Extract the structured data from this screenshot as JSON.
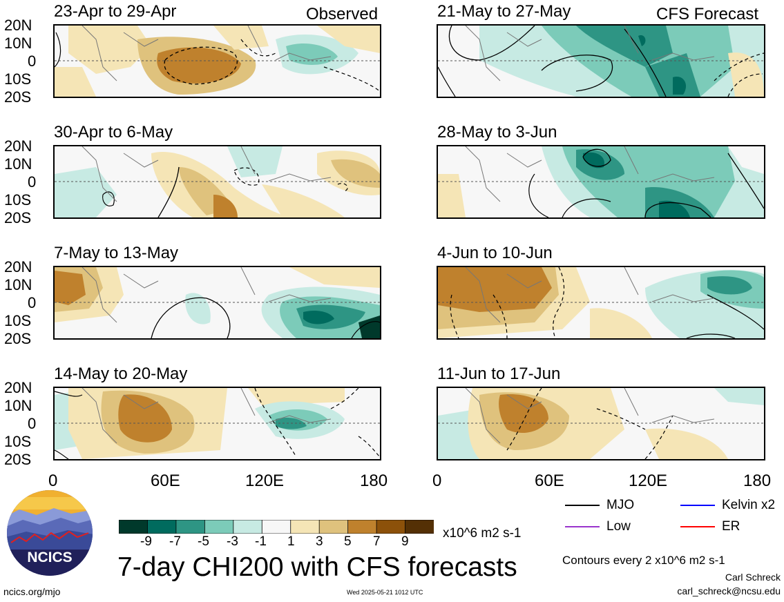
{
  "panels": [
    {
      "title": "23-Apr to 29-Apr",
      "tag": "Observed"
    },
    {
      "title": "30-Apr to 6-May",
      "tag": ""
    },
    {
      "title": "7-May to 13-May",
      "tag": ""
    },
    {
      "title": "14-May to 20-May",
      "tag": ""
    },
    {
      "title": "21-May to 27-May",
      "tag": "CFS Forecast"
    },
    {
      "title": "28-May to 3-Jun",
      "tag": ""
    },
    {
      "title": "4-Jun to 10-Jun",
      "tag": ""
    },
    {
      "title": "11-Jun to 17-Jun",
      "tag": ""
    }
  ],
  "lat_labels": [
    "20N",
    "10N",
    "0",
    "10S",
    "20S"
  ],
  "lon_labels": [
    "0",
    "60E",
    "120E",
    "180"
  ],
  "colorbar": {
    "ticks": [
      "-9",
      "-7",
      "-5",
      "-3",
      "-1",
      "1",
      "3",
      "5",
      "7",
      "9"
    ],
    "units": "x10^6 m2 s-1",
    "colors": [
      "#00392b",
      "#006b5e",
      "#2e9584",
      "#7ccbb9",
      "#c7eae3",
      "#f7f7f7",
      "#f5e5b6",
      "#dfc27d",
      "#bf812d",
      "#8c510a",
      "#543005"
    ]
  },
  "legend": [
    {
      "label": "MJO",
      "color": "#000000"
    },
    {
      "label": "Kelvin x2",
      "color": "#0000ff"
    },
    {
      "label": "Low",
      "color": "#9933cc"
    },
    {
      "label": "ER",
      "color": "#ff0000"
    }
  ],
  "main_title": "7-day CHI200 with CFS forecasts",
  "contours_note": "Contours every 2 x10^6 m2 s-1",
  "author": "Carl Schreck",
  "email": "carl_schreck@ncsu.edu",
  "logo_text": "NCICS",
  "site": "ncics.org/mjo",
  "timestamp": "Wed 2025-05-21 1012 UTC"
}
